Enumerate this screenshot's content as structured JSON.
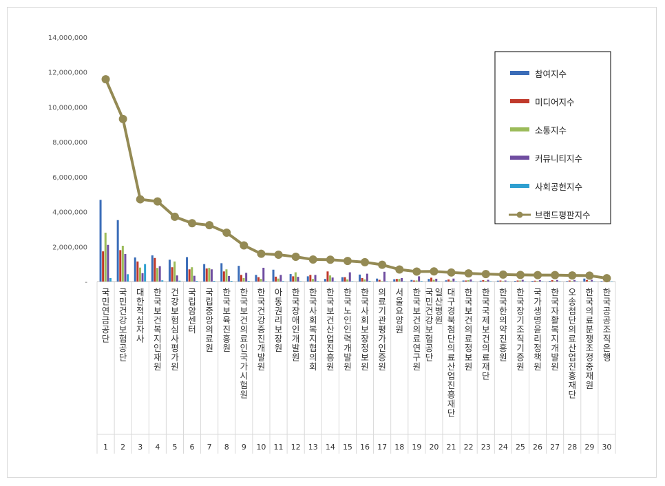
{
  "chart_data": {
    "type": "bar",
    "title": "",
    "xlabel": "",
    "ylabel": "",
    "ylim": [
      0,
      14000000
    ],
    "yticks": [
      "-",
      "2,000,000",
      "4,000,000",
      "6,000,000",
      "8,000,000",
      "10,000,000",
      "12,000,000",
      "14,000,000"
    ],
    "ranks": [
      "1",
      "2",
      "3",
      "4",
      "5",
      "6",
      "7",
      "8",
      "9",
      "10",
      "11",
      "12",
      "13",
      "14",
      "15",
      "16",
      "17",
      "18",
      "19",
      "20",
      "21",
      "22",
      "23",
      "24",
      "25",
      "26",
      "27",
      "28",
      "29",
      "30"
    ],
    "categories": [
      "국민연금공단",
      "국민건강보험공단",
      "대한적십자사",
      "한국보건복지인재원",
      "건강보험심사평가원",
      "국립암센터",
      "국립중앙의료원",
      "한국보육진흥원",
      "한국보건의료인국가시험원",
      "한국건강증진개발원",
      "아동권리보장원",
      "한국장애인개발원",
      "한국사회복지협의회",
      "한국보건산업진흥원",
      "한국노인인력개발원",
      "한국사회보장정보원",
      "의료기관평가인증원",
      "서울요양원",
      "한국보건의료연구원",
      "국민건강보험공단 일산병원",
      "대구경북첨단의료산업진흥재단",
      "한국보건의료정보원",
      "한국국제보건의료재단",
      "한국한의약진흥원",
      "한국장기조직기증원",
      "국가생명윤리정책원",
      "한국자활복지개발원",
      "오송첨단의료산업진흥재단",
      "한국의료분쟁조정중재원",
      "한국공공조직은행"
    ],
    "series": [
      {
        "name": "참여지수",
        "color": "#3b6db8",
        "values": [
          4680000,
          3520000,
          1380000,
          1500000,
          1250000,
          1400000,
          1000000,
          1050000,
          900000,
          380000,
          680000,
          430000,
          300000,
          150000,
          250000,
          400000,
          170000,
          130000,
          90000,
          150000,
          70000,
          60000,
          50000,
          50000,
          40000,
          40000,
          40000,
          30000,
          170000,
          30000
        ]
      },
      {
        "name": "미디어지수",
        "color": "#c0392b",
        "values": [
          1730000,
          1800000,
          1150000,
          1350000,
          820000,
          700000,
          750000,
          580000,
          380000,
          250000,
          280000,
          300000,
          380000,
          580000,
          250000,
          200000,
          100000,
          150000,
          60000,
          220000,
          120000,
          60000,
          80000,
          60000,
          60000,
          50000,
          80000,
          60000,
          90000,
          20000
        ]
      },
      {
        "name": "소통지수",
        "color": "#9bbb59",
        "values": [
          2800000,
          2050000,
          800000,
          780000,
          1150000,
          820000,
          780000,
          700000,
          200000,
          150000,
          170000,
          530000,
          150000,
          350000,
          120000,
          120000,
          30000,
          150000,
          60000,
          100000,
          50000,
          80000,
          40000,
          30000,
          60000,
          30000,
          30000,
          30000,
          30000,
          10000
        ]
      },
      {
        "name": "커뮤니티지수",
        "color": "#6f4da0",
        "values": [
          2100000,
          1580000,
          480000,
          880000,
          350000,
          330000,
          700000,
          320000,
          500000,
          790000,
          380000,
          270000,
          380000,
          230000,
          530000,
          450000,
          560000,
          200000,
          300000,
          160000,
          170000,
          120000,
          100000,
          60000,
          100000,
          80000,
          90000,
          90000,
          100000,
          10000
        ]
      },
      {
        "name": "사회공헌지수",
        "color": "#2e9fd0",
        "values": [
          200000,
          420000,
          1000000,
          70000,
          50000,
          40000,
          40000,
          40000,
          40000,
          20000,
          30000,
          20000,
          30000,
          20000,
          20000,
          40000,
          20000,
          20000,
          30000,
          20000,
          20000,
          10000,
          20000,
          10000,
          10000,
          10000,
          10000,
          10000,
          10000,
          10000
        ]
      }
    ],
    "line": {
      "name": "브랜드평판지수",
      "color": "#948a54",
      "values": [
        11590000,
        9310000,
        4710000,
        4590000,
        3710000,
        3340000,
        3230000,
        2800000,
        2070000,
        1590000,
        1540000,
        1420000,
        1260000,
        1250000,
        1180000,
        1110000,
        960000,
        690000,
        570000,
        580000,
        520000,
        470000,
        430000,
        400000,
        380000,
        370000,
        370000,
        350000,
        340000,
        190000
      ]
    },
    "legend_position": "top-right",
    "grid": false
  }
}
